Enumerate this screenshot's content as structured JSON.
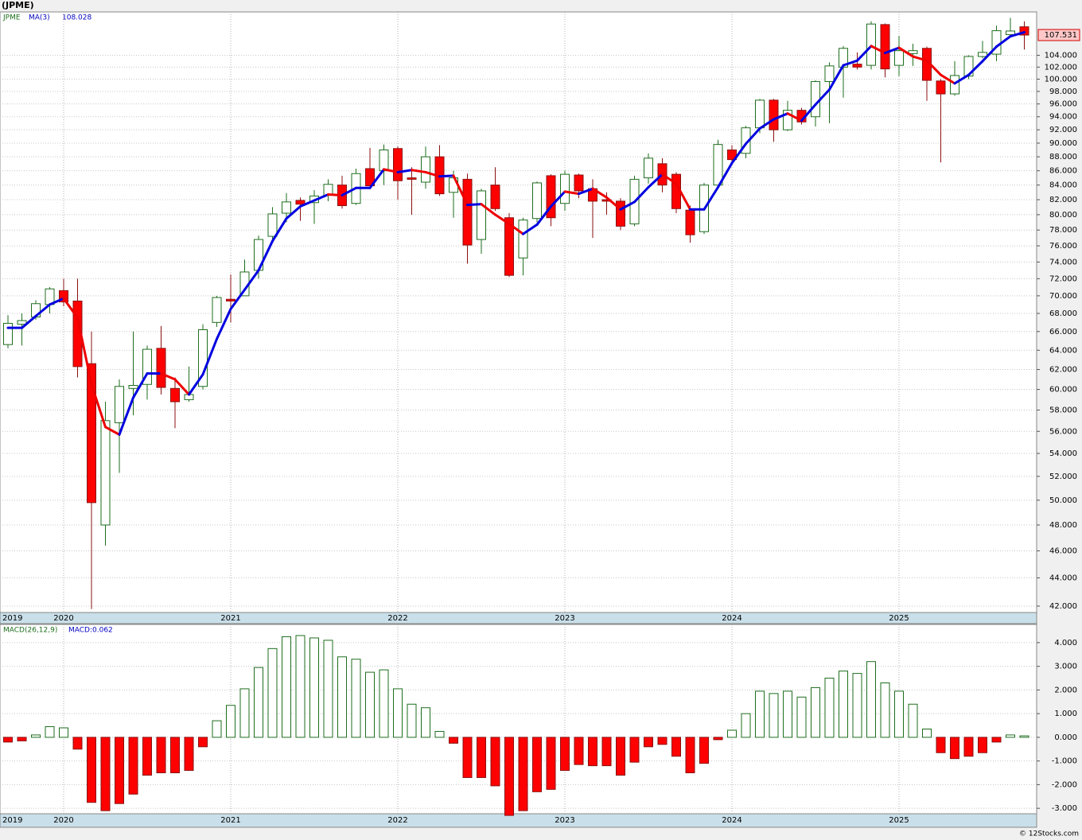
{
  "chart_data": [
    {
      "type": "candlestick",
      "title": "(JPME)",
      "symbol": "JPME",
      "log_scale": true,
      "grid": true,
      "categories": [
        "2019",
        null,
        null,
        null,
        "2020",
        null,
        null,
        null,
        null,
        null,
        null,
        null,
        null,
        null,
        null,
        null,
        "2021",
        null,
        null,
        null,
        null,
        null,
        null,
        null,
        null,
        null,
        null,
        null,
        "2022",
        null,
        null,
        null,
        null,
        null,
        null,
        null,
        null,
        null,
        null,
        null,
        "2023",
        null,
        null,
        null,
        null,
        null,
        null,
        null,
        null,
        null,
        null,
        null,
        "2024",
        null,
        null,
        null,
        null,
        null,
        null,
        null,
        null,
        null,
        null,
        null,
        "2025",
        null,
        null,
        null,
        null,
        null,
        null,
        null,
        null,
        null
      ],
      "open": [
        64.6,
        66.8,
        67.6,
        69,
        70.6,
        69.4,
        62.6,
        48,
        56.8,
        60.1,
        60.5,
        64.2,
        60.1,
        59,
        60.3,
        67,
        69.6,
        70,
        73,
        77.2,
        80.2,
        81.9,
        81.6,
        82.6,
        84,
        81.5,
        86.3,
        86,
        89.2,
        85,
        84.4,
        88,
        83,
        84.8,
        76.8,
        84,
        79.6,
        74.5,
        79.5,
        85.3,
        81.5,
        85.4,
        83.5,
        82,
        81.8,
        78.8,
        85,
        87,
        85.5,
        80.6,
        77.8,
        84,
        89,
        88.5,
        92.3,
        96.6,
        92,
        95,
        94,
        99.6,
        102,
        102.5,
        102.3,
        109.4,
        102.3,
        104.3,
        105.2,
        99.7,
        97.6,
        100.5,
        103.8,
        104.2,
        107.6,
        109
      ],
      "high": [
        67.8,
        68,
        69.5,
        71,
        72,
        72,
        66,
        58.8,
        61,
        66,
        64.5,
        66.6,
        61.2,
        62.3,
        66.8,
        70,
        72.5,
        74.3,
        77.3,
        81,
        82.9,
        82.3,
        83.3,
        84.8,
        85.3,
        86.3,
        89.3,
        89.8,
        89.5,
        86.5,
        89.5,
        89.7,
        86,
        85.6,
        83.5,
        86.5,
        80.2,
        79.6,
        84.5,
        85.5,
        86,
        85.6,
        84.8,
        83,
        82.2,
        85.3,
        88.5,
        87.8,
        85.8,
        81.2,
        84.3,
        90.5,
        89.7,
        92.6,
        96.8,
        96.8,
        96.5,
        95.4,
        99.8,
        102.8,
        105.6,
        104.5,
        110,
        109.6,
        107.4,
        106,
        105.5,
        100,
        103,
        104,
        106.5,
        109.2,
        110.6,
        110
      ],
      "low": [
        64.2,
        64.5,
        67.3,
        68,
        68.8,
        61.2,
        41.8,
        46.4,
        52.3,
        57.5,
        59,
        59.5,
        56.3,
        58.8,
        60,
        66.5,
        67,
        70,
        72,
        76.5,
        79,
        79.2,
        78.8,
        81.8,
        80.8,
        81.3,
        83.6,
        84,
        82,
        80,
        83.5,
        82.5,
        79.6,
        73.8,
        75,
        80.5,
        72.2,
        72.4,
        79,
        78.5,
        80.5,
        82.2,
        77,
        80,
        78,
        78.5,
        84.2,
        83,
        80.2,
        76.4,
        77.5,
        83.5,
        86.8,
        87.8,
        91.5,
        90.2,
        91.8,
        92.8,
        92.5,
        93,
        97,
        101.6,
        101.6,
        100.3,
        100.5,
        102.2,
        96.5,
        87.2,
        97.3,
        100,
        103.5,
        103,
        107.4,
        105
      ],
      "close": [
        66.9,
        67.2,
        69.1,
        70.8,
        69.3,
        62.3,
        49.8,
        57,
        60.3,
        60.4,
        64.1,
        60.2,
        58.8,
        59.5,
        66.2,
        69.8,
        69.4,
        72.8,
        76.8,
        80.1,
        81.7,
        81.4,
        82.5,
        84.1,
        81.2,
        85.6,
        83.9,
        89,
        84.6,
        84.8,
        88,
        82.8,
        85,
        76.1,
        83.2,
        80.8,
        72.4,
        79.3,
        84.3,
        79.6,
        85.5,
        83.2,
        81.8,
        81.8,
        78.5,
        84.8,
        87.8,
        84,
        80.8,
        77.4,
        84,
        89.8,
        87.6,
        92.3,
        96.6,
        92,
        95,
        93.2,
        99.6,
        102.2,
        105.2,
        102,
        109.5,
        101.7,
        104.8,
        104.8,
        99.8,
        97.6,
        100.6,
        103.8,
        104.5,
        108.3,
        108.25,
        107.531
      ],
      "up_fill": "#ffffff",
      "up_outline": "#1e6e1e",
      "down_fill": "#ff0000",
      "down_outline": "#8b1010",
      "series": [
        {
          "name": "MA(3)",
          "up_color": "#0000e0",
          "down_color": "#ee0000",
          "values": [
            66.4,
            66.4,
            67.7,
            69.0,
            69.7,
            67.5,
            60.5,
            56.4,
            55.7,
            59.2,
            61.6,
            61.6,
            61.0,
            59.5,
            61.5,
            65.2,
            68.5,
            70.7,
            73.0,
            76.6,
            79.5,
            81.1,
            81.9,
            82.7,
            82.6,
            83.6,
            83.6,
            86.2,
            85.8,
            86.1,
            85.8,
            85.2,
            85.3,
            81.3,
            81.4,
            80.0,
            78.8,
            77.5,
            78.7,
            81.1,
            83.1,
            82.8,
            83.5,
            82.3,
            80.7,
            81.7,
            83.7,
            85.5,
            84.2,
            80.7,
            80.7,
            83.7,
            87.1,
            89.9,
            92.2,
            93.6,
            94.5,
            93.4,
            95.9,
            98.3,
            102.3,
            103.1,
            105.6,
            104.4,
            105.3,
            103.8,
            103.1,
            100.7,
            99.3,
            100.7,
            103.0,
            105.5,
            107.3,
            108.028
          ]
        }
      ],
      "ylim": [
        41.56,
        111.7
      ],
      "yticks": [
        {
          "value": 42,
          "label": "42.000"
        },
        {
          "value": 44,
          "label": "44.000"
        },
        {
          "value": 46,
          "label": "46.000"
        },
        {
          "value": 48,
          "label": "48.000"
        },
        {
          "value": 50,
          "label": "50.000"
        },
        {
          "value": 52,
          "label": "52.000"
        },
        {
          "value": 54,
          "label": "54.000"
        },
        {
          "value": 56,
          "label": "56.000"
        },
        {
          "value": 58,
          "label": "58.000"
        },
        {
          "value": 60,
          "label": "60.000"
        },
        {
          "value": 62,
          "label": "62.000"
        },
        {
          "value": 64,
          "label": "64.000"
        },
        {
          "value": 66,
          "label": "66.000"
        },
        {
          "value": 68,
          "label": "68.000"
        },
        {
          "value": 70,
          "label": "70.000"
        },
        {
          "value": 72,
          "label": "72.000"
        },
        {
          "value": 74,
          "label": "74.000"
        },
        {
          "value": 76,
          "label": "76.000"
        },
        {
          "value": 78,
          "label": "78.000"
        },
        {
          "value": 80,
          "label": "80.000"
        },
        {
          "value": 82,
          "label": "82.000"
        },
        {
          "value": 84,
          "label": "84.000"
        },
        {
          "value": 86,
          "label": "86.000"
        },
        {
          "value": 88,
          "label": "88.000"
        },
        {
          "value": 90,
          "label": "90.000"
        },
        {
          "value": 92,
          "label": "92.000"
        },
        {
          "value": 94,
          "label": "94.000"
        },
        {
          "value": 96,
          "label": "96.000"
        },
        {
          "value": 98,
          "label": "98.000"
        },
        {
          "value": 100,
          "label": "100.000"
        },
        {
          "value": 102,
          "label": "102.000"
        },
        {
          "value": 104,
          "label": "104.000"
        }
      ]
    },
    {
      "type": "bar",
      "title": "MACD(26,12,9)",
      "value_text": "MACD:0.062",
      "grid": true,
      "positive_color": "#ffffff",
      "positive_outline": "#1e6e1e",
      "negative_color": "#ff0000",
      "negative_outline": "#8b1010",
      "values": [
        -0.2,
        -0.15,
        0.1,
        0.45,
        0.4,
        -0.5,
        -2.75,
        -3.1,
        -2.8,
        -2.4,
        -1.6,
        -1.5,
        -1.5,
        -1.4,
        -0.4,
        0.7,
        1.35,
        2.05,
        2.95,
        3.75,
        4.25,
        4.3,
        4.2,
        4.1,
        3.4,
        3.3,
        2.75,
        2.85,
        2.05,
        1.4,
        1.25,
        0.25,
        -0.25,
        -1.7,
        -1.7,
        -2.05,
        -3.3,
        -3.1,
        -2.3,
        -2.2,
        -1.4,
        -1.15,
        -1.2,
        -1.2,
        -1.6,
        -1.05,
        -0.4,
        -0.3,
        -0.8,
        -1.5,
        -1.1,
        -0.1,
        0.3,
        1.0,
        1.95,
        1.85,
        1.95,
        1.7,
        2.1,
        2.5,
        2.8,
        2.7,
        3.2,
        2.3,
        1.95,
        1.4,
        0.35,
        -0.65,
        -0.9,
        -0.8,
        -0.65,
        -0.2,
        0.1,
        0.062
      ],
      "ylim": [
        -3.23,
        4.77
      ],
      "yticks": [
        {
          "value": -3,
          "label": "-3.000"
        },
        {
          "value": -2,
          "label": "-2.000"
        },
        {
          "value": -1,
          "label": "-1.000"
        },
        {
          "value": 0,
          "label": "0.000"
        },
        {
          "value": 1,
          "label": "1.000"
        },
        {
          "value": 2,
          "label": "2.000"
        },
        {
          "value": 3,
          "label": "3.000"
        },
        {
          "value": 4,
          "label": "4.000"
        }
      ]
    }
  ],
  "footer": "© 12Stocks.com"
}
